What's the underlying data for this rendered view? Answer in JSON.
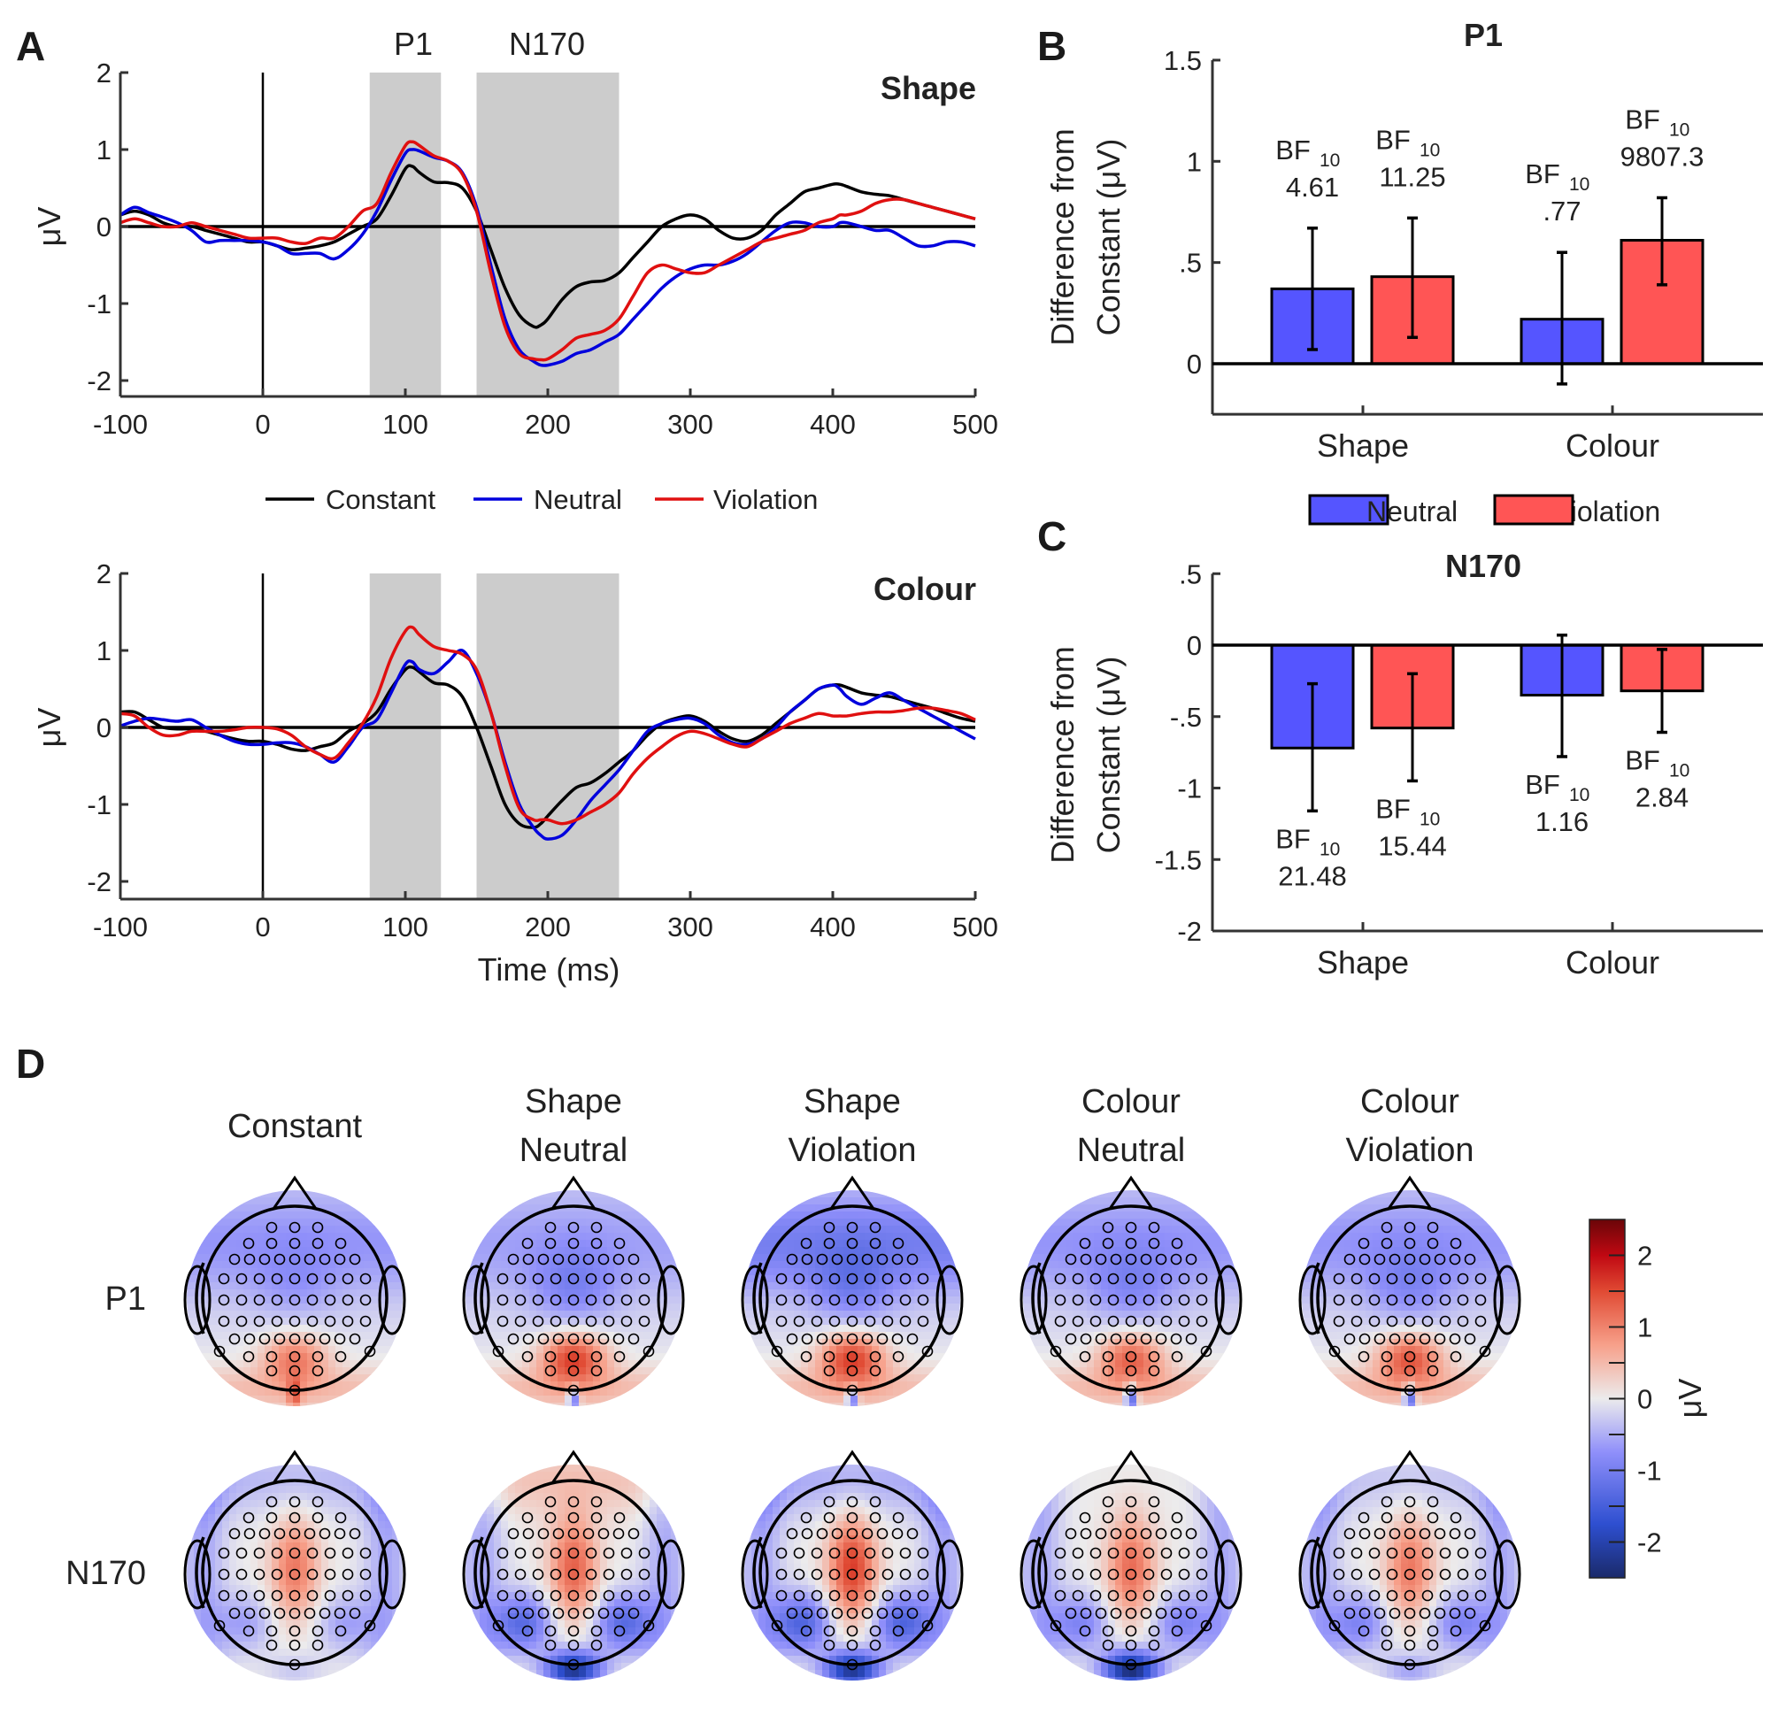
{
  "figure": {
    "panel_letters": [
      "A",
      "B",
      "C",
      "D"
    ]
  },
  "chart_data": [
    {
      "id": "erp-shape",
      "type": "line",
      "title": "Shape",
      "xlabel": "",
      "ylabel": "μV",
      "xlim": [
        -100,
        500
      ],
      "ylim": [
        -2.2,
        2
      ],
      "xticks": [
        "-100",
        "0",
        "100",
        "200",
        "300",
        "400",
        "500"
      ],
      "yticks": [
        "2",
        "1",
        "0",
        "-1",
        "-2"
      ],
      "shaded_windows": [
        {
          "label": "P1",
          "start": 75,
          "end": 125
        },
        {
          "label": "N170",
          "start": 150,
          "end": 250
        }
      ],
      "x": [
        -100,
        -90,
        -80,
        -70,
        -60,
        -50,
        -40,
        -30,
        -20,
        -10,
        0,
        10,
        20,
        30,
        40,
        50,
        60,
        70,
        80,
        90,
        100,
        105,
        110,
        120,
        130,
        140,
        150,
        160,
        170,
        180,
        190,
        195,
        200,
        210,
        220,
        230,
        240,
        250,
        260,
        270,
        280,
        290,
        300,
        310,
        320,
        330,
        340,
        350,
        360,
        370,
        380,
        390,
        400,
        405,
        410,
        420,
        430,
        440,
        450,
        460,
        470,
        480,
        490,
        500
      ],
      "series": [
        {
          "name": "Constant",
          "color": "#000000",
          "values": [
            0.15,
            0.2,
            0.15,
            0.05,
            0.0,
            0.0,
            -0.05,
            -0.1,
            -0.15,
            -0.2,
            -0.2,
            -0.25,
            -0.3,
            -0.28,
            -0.25,
            -0.2,
            -0.1,
            0.0,
            0.1,
            0.4,
            0.75,
            0.78,
            0.7,
            0.58,
            0.57,
            0.5,
            0.2,
            -0.3,
            -0.8,
            -1.15,
            -1.3,
            -1.28,
            -1.2,
            -0.95,
            -0.78,
            -0.72,
            -0.7,
            -0.6,
            -0.4,
            -0.2,
            0.0,
            0.1,
            0.15,
            0.1,
            -0.05,
            -0.15,
            -0.15,
            -0.05,
            0.15,
            0.3,
            0.45,
            0.5,
            0.55,
            0.55,
            0.52,
            0.45,
            0.42,
            0.4,
            0.35,
            0.3,
            0.25,
            0.2,
            0.15,
            0.1
          ]
        },
        {
          "name": "Neutral",
          "color": "#0000DD",
          "values": [
            0.15,
            0.25,
            0.18,
            0.12,
            0.05,
            -0.05,
            -0.2,
            -0.18,
            -0.18,
            -0.18,
            -0.2,
            -0.25,
            -0.35,
            -0.35,
            -0.35,
            -0.42,
            -0.3,
            -0.1,
            0.2,
            0.6,
            0.95,
            1.0,
            0.98,
            0.9,
            0.85,
            0.7,
            0.25,
            -0.5,
            -1.2,
            -1.6,
            -1.75,
            -1.8,
            -1.8,
            -1.75,
            -1.65,
            -1.6,
            -1.5,
            -1.4,
            -1.2,
            -1.0,
            -0.8,
            -0.65,
            -0.55,
            -0.5,
            -0.5,
            -0.45,
            -0.35,
            -0.2,
            -0.05,
            0.05,
            0.05,
            0.0,
            0.0,
            0.05,
            0.05,
            0.0,
            -0.05,
            -0.05,
            -0.15,
            -0.25,
            -0.25,
            -0.2,
            -0.2,
            -0.25
          ]
        },
        {
          "name": "Violation",
          "color": "#E01010",
          "values": [
            0.05,
            0.1,
            0.05,
            0.0,
            0.0,
            0.05,
            0.0,
            -0.05,
            -0.1,
            -0.15,
            -0.15,
            -0.15,
            -0.2,
            -0.22,
            -0.15,
            -0.15,
            0.0,
            0.2,
            0.3,
            0.7,
            1.05,
            1.1,
            1.05,
            0.92,
            0.85,
            0.68,
            0.2,
            -0.6,
            -1.3,
            -1.65,
            -1.72,
            -1.73,
            -1.72,
            -1.6,
            -1.45,
            -1.4,
            -1.35,
            -1.2,
            -0.9,
            -0.6,
            -0.5,
            -0.55,
            -0.6,
            -0.6,
            -0.5,
            -0.4,
            -0.3,
            -0.2,
            -0.15,
            -0.1,
            -0.05,
            0.05,
            0.1,
            0.15,
            0.15,
            0.2,
            0.3,
            0.35,
            0.35,
            0.3,
            0.25,
            0.2,
            0.15,
            0.1
          ]
        }
      ]
    },
    {
      "id": "erp-colour",
      "type": "line",
      "title": "Colour",
      "xlabel": "Time (ms)",
      "ylabel": "μV",
      "xlim": [
        -100,
        500
      ],
      "ylim": [
        -2.2,
        2
      ],
      "xticks": [
        "-100",
        "0",
        "100",
        "200",
        "300",
        "400",
        "500"
      ],
      "yticks": [
        "2",
        "1",
        "0",
        "-1",
        "-2"
      ],
      "shaded_windows": [
        {
          "label": "P1",
          "start": 75,
          "end": 125
        },
        {
          "label": "N170",
          "start": 150,
          "end": 250
        }
      ],
      "x": [
        -100,
        -90,
        -80,
        -70,
        -60,
        -50,
        -40,
        -30,
        -20,
        -10,
        0,
        10,
        20,
        30,
        40,
        50,
        60,
        70,
        80,
        90,
        100,
        105,
        110,
        120,
        130,
        140,
        150,
        160,
        170,
        180,
        190,
        195,
        200,
        210,
        220,
        230,
        240,
        250,
        260,
        270,
        280,
        290,
        300,
        310,
        320,
        330,
        340,
        350,
        360,
        370,
        380,
        390,
        400,
        405,
        410,
        420,
        430,
        440,
        450,
        460,
        470,
        480,
        490,
        500
      ],
      "series": [
        {
          "name": "Constant",
          "color": "#000000",
          "values": [
            0.2,
            0.2,
            0.1,
            0.0,
            -0.02,
            -0.02,
            -0.05,
            -0.1,
            -0.15,
            -0.18,
            -0.18,
            -0.22,
            -0.28,
            -0.3,
            -0.25,
            -0.2,
            -0.05,
            0.05,
            0.2,
            0.5,
            0.75,
            0.78,
            0.72,
            0.58,
            0.55,
            0.4,
            0.0,
            -0.5,
            -1.0,
            -1.25,
            -1.3,
            -1.25,
            -1.15,
            -0.95,
            -0.78,
            -0.72,
            -0.6,
            -0.45,
            -0.3,
            -0.1,
            0.05,
            0.12,
            0.15,
            0.08,
            -0.05,
            -0.15,
            -0.18,
            -0.1,
            0.05,
            0.2,
            0.35,
            0.5,
            0.55,
            0.55,
            0.52,
            0.45,
            0.42,
            0.4,
            0.35,
            0.3,
            0.25,
            0.18,
            0.12,
            0.08
          ]
        },
        {
          "name": "Neutral",
          "color": "#0000DD",
          "values": [
            0.02,
            0.08,
            0.12,
            0.1,
            0.08,
            0.1,
            0.0,
            -0.1,
            -0.18,
            -0.22,
            -0.22,
            -0.2,
            -0.2,
            -0.25,
            -0.35,
            -0.45,
            -0.25,
            0.0,
            0.1,
            0.45,
            0.82,
            0.85,
            0.75,
            0.7,
            0.85,
            1.0,
            0.7,
            0.2,
            -0.45,
            -1.0,
            -1.3,
            -1.4,
            -1.45,
            -1.4,
            -1.2,
            -0.95,
            -0.75,
            -0.55,
            -0.3,
            -0.05,
            0.05,
            0.1,
            0.12,
            0.05,
            -0.1,
            -0.2,
            -0.22,
            -0.15,
            0.0,
            0.2,
            0.35,
            0.5,
            0.55,
            0.5,
            0.4,
            0.3,
            0.38,
            0.45,
            0.35,
            0.25,
            0.15,
            0.05,
            -0.05,
            -0.15
          ]
        },
        {
          "name": "Violation",
          "color": "#E01010",
          "values": [
            0.18,
            0.15,
            0.0,
            -0.1,
            -0.1,
            -0.05,
            -0.05,
            -0.05,
            -0.03,
            0.0,
            0.0,
            -0.02,
            -0.1,
            -0.25,
            -0.35,
            -0.4,
            -0.2,
            0.05,
            0.4,
            0.9,
            1.25,
            1.3,
            1.2,
            1.05,
            1.0,
            0.95,
            0.75,
            0.2,
            -0.5,
            -1.05,
            -1.2,
            -1.2,
            -1.2,
            -1.25,
            -1.2,
            -1.1,
            -1.0,
            -0.85,
            -0.6,
            -0.4,
            -0.25,
            -0.12,
            -0.05,
            -0.08,
            -0.15,
            -0.22,
            -0.25,
            -0.15,
            -0.05,
            0.05,
            0.12,
            0.18,
            0.15,
            0.15,
            0.15,
            0.18,
            0.2,
            0.2,
            0.22,
            0.25,
            0.25,
            0.22,
            0.18,
            0.1
          ]
        }
      ]
    },
    {
      "id": "bar-p1",
      "type": "bar",
      "title": "P1",
      "xlabel": "",
      "ylabel": "Difference from Constant (μV)",
      "ylim": [
        -0.25,
        1.5
      ],
      "yticks": [
        "1.5",
        "1",
        ".5",
        "0"
      ],
      "categories": [
        "Shape",
        "Colour"
      ],
      "series": [
        {
          "name": "Neutral",
          "color": "#5555FF",
          "values": [
            0.37,
            0.22
          ],
          "error_low": [
            0.07,
            -0.1
          ],
          "error_high": [
            0.67,
            0.55
          ],
          "bf10": [
            "4.61",
            ".77"
          ]
        },
        {
          "name": "Violation",
          "color": "#FF5555",
          "values": [
            0.43,
            0.61
          ],
          "error_low": [
            0.13,
            0.39
          ],
          "error_high": [
            0.72,
            0.82
          ],
          "bf10": [
            "11.25",
            "9807.3"
          ]
        }
      ],
      "legend": "bottom-center"
    },
    {
      "id": "bar-n170",
      "type": "bar",
      "title": "N170",
      "xlabel": "",
      "ylabel": "Difference from Constant (μV)",
      "ylim": [
        -2,
        0.5
      ],
      "yticks": [
        ".5",
        "0",
        "-.5",
        "-1",
        "-1.5",
        "-2"
      ],
      "categories": [
        "Shape",
        "Colour"
      ],
      "series": [
        {
          "name": "Neutral",
          "color": "#5555FF",
          "values": [
            -0.72,
            -0.35
          ],
          "error_low": [
            -1.16,
            -0.78
          ],
          "error_high": [
            -0.27,
            0.07
          ],
          "bf10": [
            "21.48",
            "1.16"
          ]
        },
        {
          "name": "Violation",
          "color": "#FF5555",
          "values": [
            -0.58,
            -0.32
          ],
          "error_low": [
            -0.95,
            -0.61
          ],
          "error_high": [
            -0.2,
            -0.03
          ],
          "bf10": [
            "15.44",
            "2.84"
          ]
        }
      ]
    },
    {
      "id": "topographies",
      "type": "heatmap",
      "columns": [
        "Constant",
        "Shape\nNeutral",
        "Shape\nViolation",
        "Colour\nNeutral",
        "Colour\nViolation"
      ],
      "rows": [
        "P1",
        "N170"
      ],
      "colorbar": {
        "label": "μV",
        "range": [
          -2.5,
          2.5
        ],
        "ticks": [
          "2",
          "1",
          "0",
          "-1",
          "-2"
        ]
      },
      "peaks": [
        [
          {
            "anterior": -0.4,
            "central": -0.3,
            "posterior": 1.1,
            "occipital_mid": 0.9
          },
          {
            "anterior": -0.3,
            "central": -0.6,
            "posterior": 1.6,
            "occipital_mid": 0.0
          },
          {
            "anterior": -0.7,
            "central": -0.6,
            "posterior": 1.6,
            "occipital_mid": 0.0
          },
          {
            "anterior": -0.4,
            "central": -0.5,
            "posterior": 1.3,
            "occipital_mid": -0.6
          },
          {
            "anterior": -0.4,
            "central": -0.5,
            "posterior": 1.4,
            "occipital_mid": -0.5
          }
        ],
        [
          {
            "anterior": -0.4,
            "central": 1.1,
            "posterior": -0.6,
            "occipital_mid": -0.3
          },
          {
            "anterior": 0.4,
            "central": 1.3,
            "posterior": -1.3,
            "occipital_mid": -2.3
          },
          {
            "anterior": -0.5,
            "central": 1.6,
            "posterior": -1.4,
            "occipital_mid": -2.3
          },
          {
            "anterior": 0.0,
            "central": 1.2,
            "posterior": -0.9,
            "occipital_mid": -2.5
          },
          {
            "anterior": -0.3,
            "central": 1.1,
            "posterior": -0.9,
            "occipital_mid": -0.6
          }
        ]
      ]
    }
  ],
  "panelA": {
    "window_labels": [
      "P1",
      "N170"
    ],
    "legend": [
      "Constant",
      "Neutral",
      "Violation"
    ],
    "upper_title": "Shape",
    "lower_title": "Colour",
    "ylabel": "μV",
    "xlabel": "Time (ms)"
  },
  "panelB": {
    "title": "P1",
    "ylabel_line1": "Difference from",
    "ylabel_line2": "Constant (μV)",
    "bf_prefix": "BF",
    "bf_sub": "10",
    "legend": [
      "Neutral",
      "Violation"
    ]
  },
  "panelC": {
    "title": "N170",
    "ylabel_line1": "Difference from",
    "ylabel_line2": "Constant (μV)"
  },
  "panelD": {
    "col_titles": [
      [
        "Constant"
      ],
      [
        "Shape",
        "Neutral"
      ],
      [
        "Shape",
        "Violation"
      ],
      [
        "Colour",
        "Neutral"
      ],
      [
        "Colour",
        "Violation"
      ]
    ],
    "row_labels": [
      "P1",
      "N170"
    ],
    "colorbar_label": "μV"
  }
}
